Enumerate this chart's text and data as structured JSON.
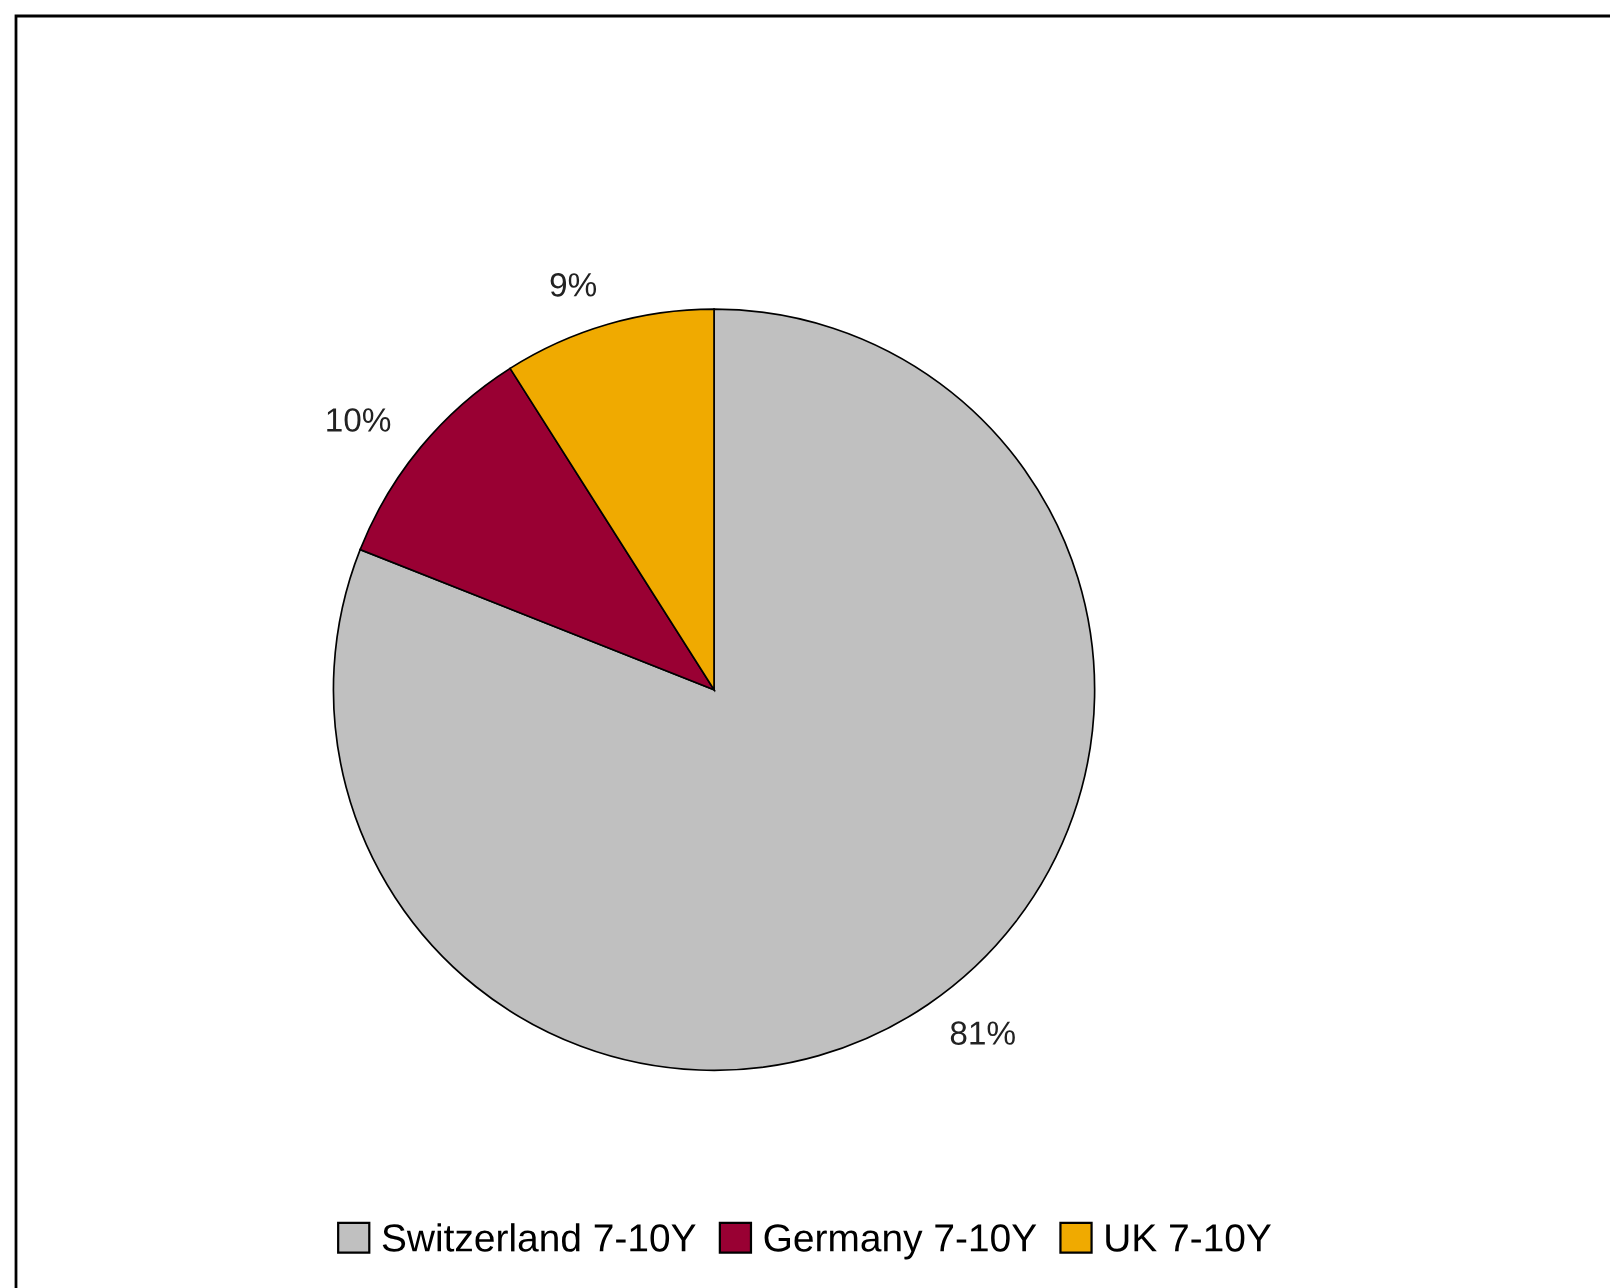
{
  "chart_data": {
    "type": "pie",
    "categories": [
      "Switzerland 7-10Y",
      "Germany 7-10Y",
      "UK 7-10Y"
    ],
    "values": [
      81,
      10,
      9
    ],
    "value_labels": [
      "81%",
      "10%",
      "9%"
    ],
    "colors": [
      "#c0c0c0",
      "#990033",
      "#f0aa00"
    ],
    "legend": "bottom"
  }
}
